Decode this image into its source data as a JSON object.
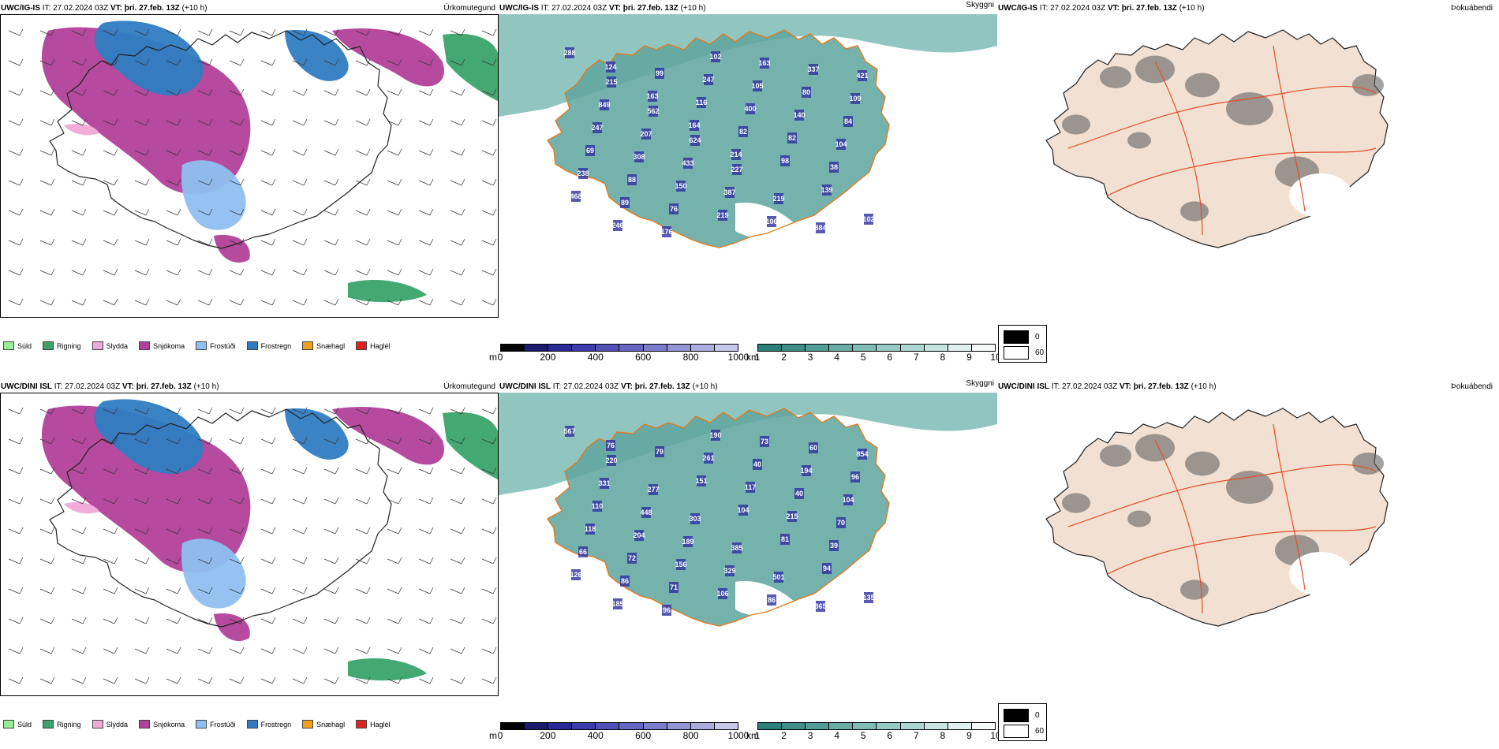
{
  "header": {
    "it_label": "IT:",
    "vt_label": "VT:",
    "it_value": "27.02.2024 03Z",
    "vt_value": "þri. 27.feb. 13Z",
    "lead": "(+10 h)"
  },
  "rows": [
    {
      "model": "UWC/IG-IS"
    },
    {
      "model": "UWC/DINI ISL"
    }
  ],
  "panel_titles": {
    "precip_type": "Úrkomutegund",
    "cloud": "Skyggni",
    "fog": "Þokuábendi"
  },
  "precip_legend": [
    {
      "label": "Súld",
      "color": "#98ee98"
    },
    {
      "label": "Rigning",
      "color": "#3aa36a"
    },
    {
      "label": "Slydda",
      "color": "#f0a8d8"
    },
    {
      "label": "Snjókoma",
      "color": "#b2409a"
    },
    {
      "label": "Frostúði",
      "color": "#8fbff0"
    },
    {
      "label": "Frostregn",
      "color": "#2f7cc2"
    },
    {
      "label": "Snæhagl",
      "color": "#f0a020"
    },
    {
      "label": "Haglél",
      "color": "#e02020"
    }
  ],
  "height_scale": {
    "unit": "m",
    "ticks": [
      "0",
      "200",
      "400",
      "600",
      "800",
      "1000"
    ],
    "colors": [
      "#000000",
      "#1a1a70",
      "#2a2a96",
      "#3c3cac",
      "#5050b8",
      "#6666c2",
      "#7c7ccc",
      "#9494d6",
      "#acacdf",
      "#c8c8ea"
    ]
  },
  "vis_scale": {
    "unit": "km",
    "ticks": [
      "1",
      "2",
      "3",
      "4",
      "5",
      "6",
      "7",
      "8",
      "9",
      "10"
    ],
    "colors": [
      "#2d7f7a",
      "#3f8f88",
      "#529e97",
      "#68ada6",
      "#7ebcb5",
      "#96cac4",
      "#add7d2",
      "#c6e4e0",
      "#dff0ee",
      "#f6fbfa"
    ]
  },
  "fog_scale": {
    "top": "0",
    "bottom": "60"
  },
  "cloud_labels": [
    [
      "288",
      "215",
      "562",
      "624",
      "227",
      "219",
      "884",
      "421",
      "849",
      "207",
      "433",
      "387",
      "106",
      "337",
      "109",
      "247",
      "308",
      "150",
      "219",
      "163",
      "80",
      "84",
      "69",
      "88",
      "76",
      "102",
      "105",
      "140",
      "104",
      "238",
      "89",
      "176",
      "247",
      "400",
      "82",
      "38",
      "468",
      "246",
      "99",
      "116",
      "82",
      "98",
      "139",
      "102",
      "124",
      "163",
      "164",
      "214"
    ],
    [
      "567",
      "220",
      "277",
      "303",
      "385",
      "501",
      "365",
      "854",
      "331",
      "448",
      "189",
      "329",
      "86",
      "60",
      "96",
      "110",
      "204",
      "156",
      "106",
      "73",
      "194",
      "104",
      "118",
      "72",
      "71",
      "190",
      "40",
      "40",
      "70",
      "66",
      "86",
      "96",
      "261",
      "117",
      "215",
      "39",
      "126",
      "185",
      "79",
      "151",
      "104",
      "81",
      "94",
      "135",
      "76"
    ]
  ]
}
